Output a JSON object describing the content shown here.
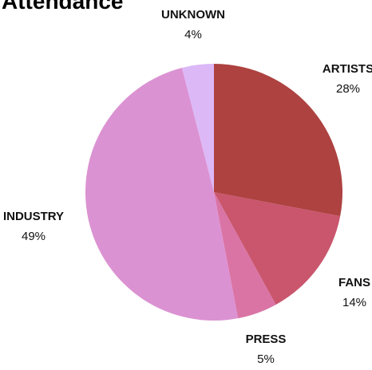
{
  "chart_data": {
    "type": "pie",
    "title": "Attendance",
    "slices": [
      {
        "label": "ARTISTS",
        "value": 28,
        "value_label": "28%",
        "color": "#ad4240"
      },
      {
        "label": "FANS",
        "value": 14,
        "value_label": "14%",
        "color": "#c9566d"
      },
      {
        "label": "PRESS",
        "value": 5,
        "value_label": "5%",
        "color": "#da74a5"
      },
      {
        "label": "INDUSTRY",
        "value": 49,
        "value_label": "49%",
        "color": "#db92d2"
      },
      {
        "label": "UNKNOWN",
        "value": 4,
        "value_label": "4%",
        "color": "#dcb8f7"
      }
    ],
    "start_angle_deg": 0,
    "direction": "clockwise",
    "legend": "none",
    "label_style": "outside"
  }
}
